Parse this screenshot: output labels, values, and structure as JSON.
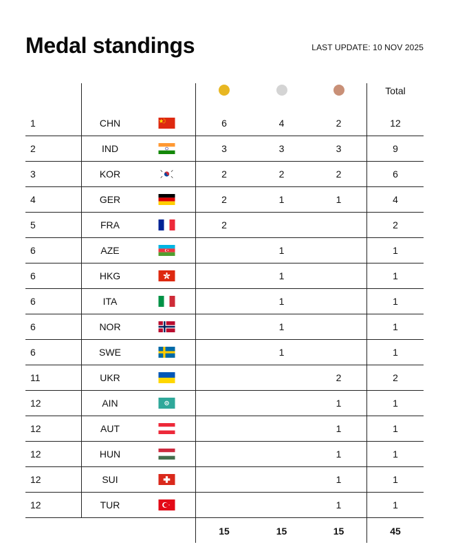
{
  "page": {
    "title": "Medal standings",
    "last_update": "LAST UPDATE: 10 NOV 2025"
  },
  "header": {
    "total_label": "Total",
    "medal_colors": {
      "gold": "#E8B722",
      "silver": "#D4D4D4",
      "bronze": "#C99077"
    }
  },
  "rows": [
    {
      "rank": "1",
      "code": "CHN",
      "flag": "chn-flag-icon",
      "gold": "6",
      "silver": "4",
      "bronze": "2",
      "total": "12"
    },
    {
      "rank": "2",
      "code": "IND",
      "flag": "ind-flag-icon",
      "gold": "3",
      "silver": "3",
      "bronze": "3",
      "total": "9"
    },
    {
      "rank": "3",
      "code": "KOR",
      "flag": "kor-flag-icon",
      "gold": "2",
      "silver": "2",
      "bronze": "2",
      "total": "6"
    },
    {
      "rank": "4",
      "code": "GER",
      "flag": "ger-flag-icon",
      "gold": "2",
      "silver": "1",
      "bronze": "1",
      "total": "4"
    },
    {
      "rank": "5",
      "code": "FRA",
      "flag": "fra-flag-icon",
      "gold": "2",
      "silver": "",
      "bronze": "",
      "total": "2"
    },
    {
      "rank": "6",
      "code": "AZE",
      "flag": "aze-flag-icon",
      "gold": "",
      "silver": "1",
      "bronze": "",
      "total": "1"
    },
    {
      "rank": "6",
      "code": "HKG",
      "flag": "hkg-flag-icon",
      "gold": "",
      "silver": "1",
      "bronze": "",
      "total": "1"
    },
    {
      "rank": "6",
      "code": "ITA",
      "flag": "ita-flag-icon",
      "gold": "",
      "silver": "1",
      "bronze": "",
      "total": "1"
    },
    {
      "rank": "6",
      "code": "NOR",
      "flag": "nor-flag-icon",
      "gold": "",
      "silver": "1",
      "bronze": "",
      "total": "1"
    },
    {
      "rank": "6",
      "code": "SWE",
      "flag": "swe-flag-icon",
      "gold": "",
      "silver": "1",
      "bronze": "",
      "total": "1"
    },
    {
      "rank": "11",
      "code": "UKR",
      "flag": "ukr-flag-icon",
      "gold": "",
      "silver": "",
      "bronze": "2",
      "total": "2"
    },
    {
      "rank": "12",
      "code": "AIN",
      "flag": "ain-flag-icon",
      "gold": "",
      "silver": "",
      "bronze": "1",
      "total": "1"
    },
    {
      "rank": "12",
      "code": "AUT",
      "flag": "aut-flag-icon",
      "gold": "",
      "silver": "",
      "bronze": "1",
      "total": "1"
    },
    {
      "rank": "12",
      "code": "HUN",
      "flag": "hun-flag-icon",
      "gold": "",
      "silver": "",
      "bronze": "1",
      "total": "1"
    },
    {
      "rank": "12",
      "code": "SUI",
      "flag": "sui-flag-icon",
      "gold": "",
      "silver": "",
      "bronze": "1",
      "total": "1"
    },
    {
      "rank": "12",
      "code": "TUR",
      "flag": "tur-flag-icon",
      "gold": "",
      "silver": "",
      "bronze": "1",
      "total": "1"
    }
  ],
  "totals": {
    "gold": "15",
    "silver": "15",
    "bronze": "15",
    "total": "45"
  }
}
